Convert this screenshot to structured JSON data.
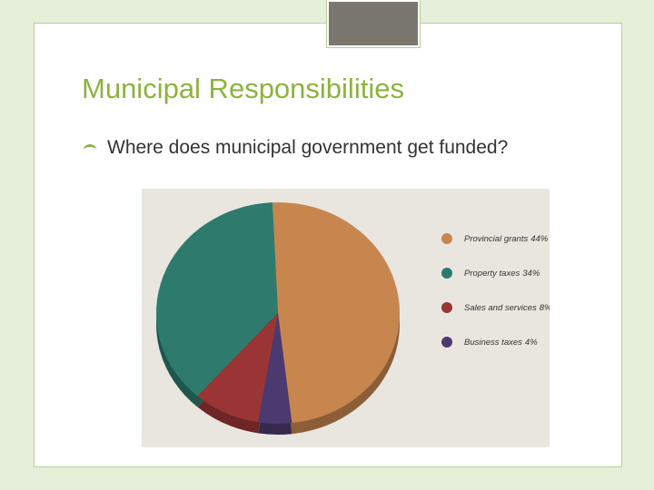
{
  "slide": {
    "title": "Municipal Responsibilities",
    "bullet": "Where does municipal government get funded?"
  },
  "chart_data": {
    "type": "pie",
    "categories": [
      "Provincial grants",
      "Property taxes",
      "Sales and services",
      "Business taxes"
    ],
    "values": [
      44,
      34,
      8,
      4
    ],
    "value_labels": [
      "44%",
      "34%",
      "8%",
      "4%"
    ],
    "colors": [
      "#c8864f",
      "#2e7b6e",
      "#9b3535",
      "#4b3a70"
    ]
  }
}
